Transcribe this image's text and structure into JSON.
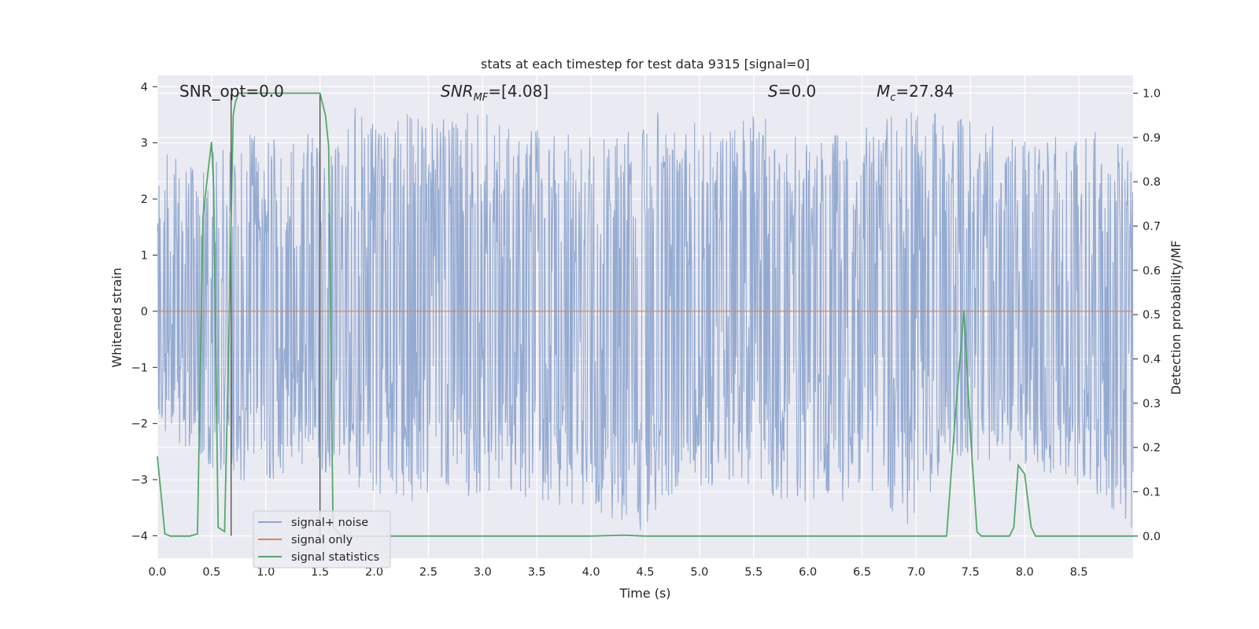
{
  "chart_data": {
    "type": "line",
    "title": "stats at each timestep for test data 9315 [signal=0]",
    "xlabel": "Time (s)",
    "ylabel": "Whitened strain",
    "y2label": "Detection probability/MF",
    "xlim": [
      0.0,
      9.0
    ],
    "ylim": [
      -4.4,
      4.2
    ],
    "y2lim": [
      -0.05,
      1.04
    ],
    "x_ticks": [
      "0.0",
      "0.5",
      "1.0",
      "1.5",
      "2.0",
      "2.5",
      "3.0",
      "3.5",
      "4.0",
      "4.5",
      "5.0",
      "5.5",
      "6.0",
      "6.5",
      "7.0",
      "7.5",
      "8.0",
      "8.5"
    ],
    "y_ticks": [
      "4",
      "3",
      "2",
      "1",
      "0",
      "−1",
      "−2",
      "−3",
      "−4"
    ],
    "y2_ticks": [
      "1.0",
      "0.9",
      "0.8",
      "0.7",
      "0.6",
      "0.5",
      "0.4",
      "0.3",
      "0.2",
      "0.1",
      "0.0"
    ],
    "grid": true,
    "legend_position": "lower-left",
    "annotations": {
      "snr_opt": "SNR_opt=0.0",
      "snr_mf_main": "SNR",
      "snr_mf_sub": "MF",
      "snr_mf_value": "=[4.08]",
      "s_main": "S",
      "s_value": "=0.0",
      "mc_main": "M",
      "mc_sub": "c",
      "mc_value": "=27.84"
    },
    "markers_x": [
      0.68,
      1.5
    ],
    "series": [
      {
        "name": "signal+ noise",
        "color": "#8fa6cf",
        "description_envelope": "noise strain approx within [-4.0, 3.8] across 0-9 s",
        "upper_peaks": [
          [
            0.05,
            2.9
          ],
          [
            0.3,
            2.6
          ],
          [
            0.52,
            2.9
          ],
          [
            0.9,
            3.2
          ],
          [
            1.25,
            3.3
          ],
          [
            1.55,
            3.0
          ],
          [
            1.8,
            3.7
          ],
          [
            2.2,
            3.6
          ],
          [
            2.7,
            3.6
          ],
          [
            3.1,
            3.5
          ],
          [
            3.6,
            3.2
          ],
          [
            4.2,
            3.1
          ],
          [
            4.75,
            3.7
          ],
          [
            5.1,
            3.2
          ],
          [
            5.55,
            3.8
          ],
          [
            5.95,
            3.0
          ],
          [
            6.45,
            3.3
          ],
          [
            6.9,
            3.6
          ],
          [
            7.3,
            3.5
          ],
          [
            7.7,
            3.3
          ],
          [
            8.2,
            3.1
          ],
          [
            8.7,
            3.2
          ],
          [
            8.95,
            2.9
          ]
        ],
        "lower_peaks": [
          [
            0.1,
            -2.3
          ],
          [
            0.4,
            -2.6
          ],
          [
            0.65,
            -3.1
          ],
          [
            0.95,
            -3.2
          ],
          [
            1.15,
            -2.9
          ],
          [
            1.45,
            -2.8
          ],
          [
            1.85,
            -3.2
          ],
          [
            2.35,
            -3.4
          ],
          [
            2.75,
            -3.3
          ],
          [
            3.25,
            -3.3
          ],
          [
            3.5,
            -3.4
          ],
          [
            4.15,
            -3.7
          ],
          [
            4.4,
            -4.0
          ],
          [
            4.8,
            -3.3
          ],
          [
            5.3,
            -3.0
          ],
          [
            5.98,
            -3.6
          ],
          [
            6.65,
            -3.2
          ],
          [
            6.9,
            -3.9
          ],
          [
            7.25,
            -3.0
          ],
          [
            7.6,
            -2.7
          ],
          [
            8.15,
            -2.9
          ],
          [
            8.65,
            -3.2
          ],
          [
            8.92,
            -4.0
          ]
        ]
      },
      {
        "name": "signal only",
        "color": "#dd8452",
        "x": [
          0.0,
          9.0
        ],
        "y": [
          0.0,
          0.0
        ]
      },
      {
        "name": "signal statistics",
        "color": "#55a868",
        "axis": "right",
        "x": [
          0.0,
          0.07,
          0.12,
          0.2,
          0.3,
          0.37,
          0.42,
          0.47,
          0.5,
          0.52,
          0.56,
          0.62,
          0.66,
          0.7,
          0.72,
          0.75,
          0.8,
          1.0,
          1.2,
          1.5,
          1.55,
          1.58,
          1.62,
          1.66,
          1.7,
          2.0,
          3.0,
          4.0,
          4.3,
          4.5,
          5.0,
          6.0,
          7.0,
          7.28,
          7.36,
          7.44,
          7.5,
          7.56,
          7.6,
          7.7,
          7.86,
          7.9,
          7.94,
          8.0,
          8.06,
          8.1,
          8.2,
          8.5,
          9.0
        ],
        "y": [
          0.18,
          0.005,
          0.0,
          0.0,
          0.0,
          0.005,
          0.72,
          0.83,
          0.89,
          0.78,
          0.02,
          0.01,
          0.45,
          0.95,
          0.98,
          1.0,
          1.0,
          1.0,
          1.0,
          1.0,
          0.95,
          0.88,
          0.02,
          0.01,
          0.0,
          0.0,
          0.0,
          0.0,
          0.002,
          0.0,
          0.0,
          0.0,
          0.0,
          0.0,
          0.27,
          0.51,
          0.23,
          0.01,
          0.0,
          0.0,
          0.0,
          0.02,
          0.16,
          0.14,
          0.02,
          0.0,
          0.0,
          0.0,
          0.0
        ]
      }
    ]
  }
}
